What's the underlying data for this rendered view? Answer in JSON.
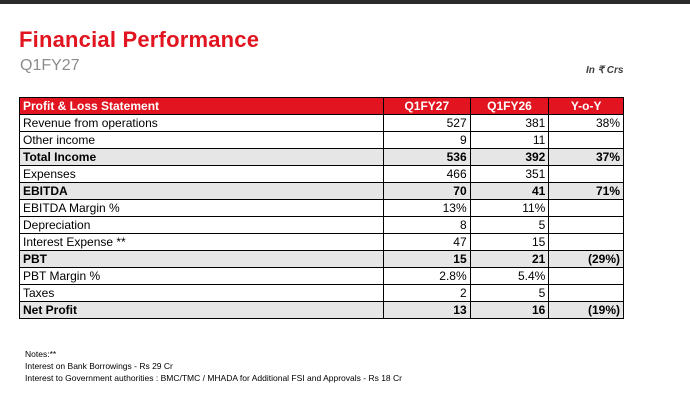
{
  "header": {
    "title": "Financial Performance",
    "subtitle": "Q1FY27",
    "units": "In ₹ Crs"
  },
  "table": {
    "columns": [
      "Profit & Loss Statement",
      "Q1FY27",
      "Q1FY26",
      "Y-o-Y"
    ],
    "rows": [
      {
        "label": "Revenue from operations",
        "q1fy27": "527",
        "q1fy26": "381",
        "yoy": "38%",
        "bold": false
      },
      {
        "label": "Other income",
        "q1fy27": "9",
        "q1fy26": "11",
        "yoy": "",
        "bold": false
      },
      {
        "label": "Total Income",
        "q1fy27": "536",
        "q1fy26": "392",
        "yoy": "37%",
        "bold": true
      },
      {
        "label": "Expenses",
        "q1fy27": "466",
        "q1fy26": "351",
        "yoy": "",
        "bold": false
      },
      {
        "label": "EBITDA",
        "q1fy27": "70",
        "q1fy26": "41",
        "yoy": "71%",
        "bold": true
      },
      {
        "label": "EBITDA Margin %",
        "q1fy27": "13%",
        "q1fy26": "11%",
        "yoy": "",
        "bold": false
      },
      {
        "label": "Depreciation",
        "q1fy27": "8",
        "q1fy26": "5",
        "yoy": "",
        "bold": false
      },
      {
        "label": "Interest Expense **",
        "q1fy27": "47",
        "q1fy26": "15",
        "yoy": "",
        "bold": false
      },
      {
        "label": "PBT",
        "q1fy27": "15",
        "q1fy26": "21",
        "yoy": "(29%)",
        "bold": true
      },
      {
        "label": "PBT Margin %",
        "q1fy27": "2.8%",
        "q1fy26": "5.4%",
        "yoy": "",
        "bold": false
      },
      {
        "label": "Taxes",
        "q1fy27": "2",
        "q1fy26": "5",
        "yoy": "",
        "bold": false
      },
      {
        "label": "Net Profit",
        "q1fy27": "13",
        "q1fy26": "16",
        "yoy": "(19%)",
        "bold": true
      }
    ]
  },
  "notes": {
    "heading": "Notes:**",
    "lines": [
      "Interest on Bank Borrowings - Rs 29 Cr",
      "Interest to Government authorities : BMC/TMC / MHADA for Additional FSI and Approvals - Rs 18 Cr"
    ]
  },
  "colors": {
    "accent": "#e1141f",
    "subtitle": "#8c8c8c",
    "bold_row_bg": "#e6e6e6"
  }
}
